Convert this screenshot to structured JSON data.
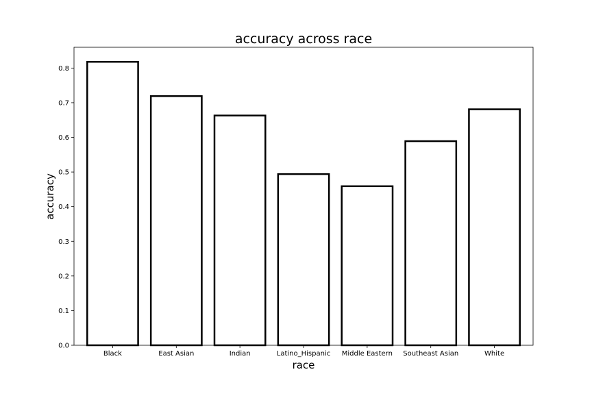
{
  "chart_data": {
    "type": "bar",
    "title": "accuracy across race",
    "xlabel": "race",
    "ylabel": "accuracy",
    "categories": [
      "Black",
      "East Asian",
      "Indian",
      "Latino_Hispanic",
      "Middle Eastern",
      "Southeast Asian",
      "White"
    ],
    "values": [
      0.818,
      0.719,
      0.663,
      0.494,
      0.459,
      0.589,
      0.681
    ],
    "ylim": [
      0,
      0.86
    ],
    "yticks": [
      "0.0",
      "0.1",
      "0.2",
      "0.3",
      "0.4",
      "0.5",
      "0.6",
      "0.7",
      "0.8"
    ],
    "grid": false,
    "bar_fill": "#ffffff",
    "bar_edge": "#000000"
  }
}
